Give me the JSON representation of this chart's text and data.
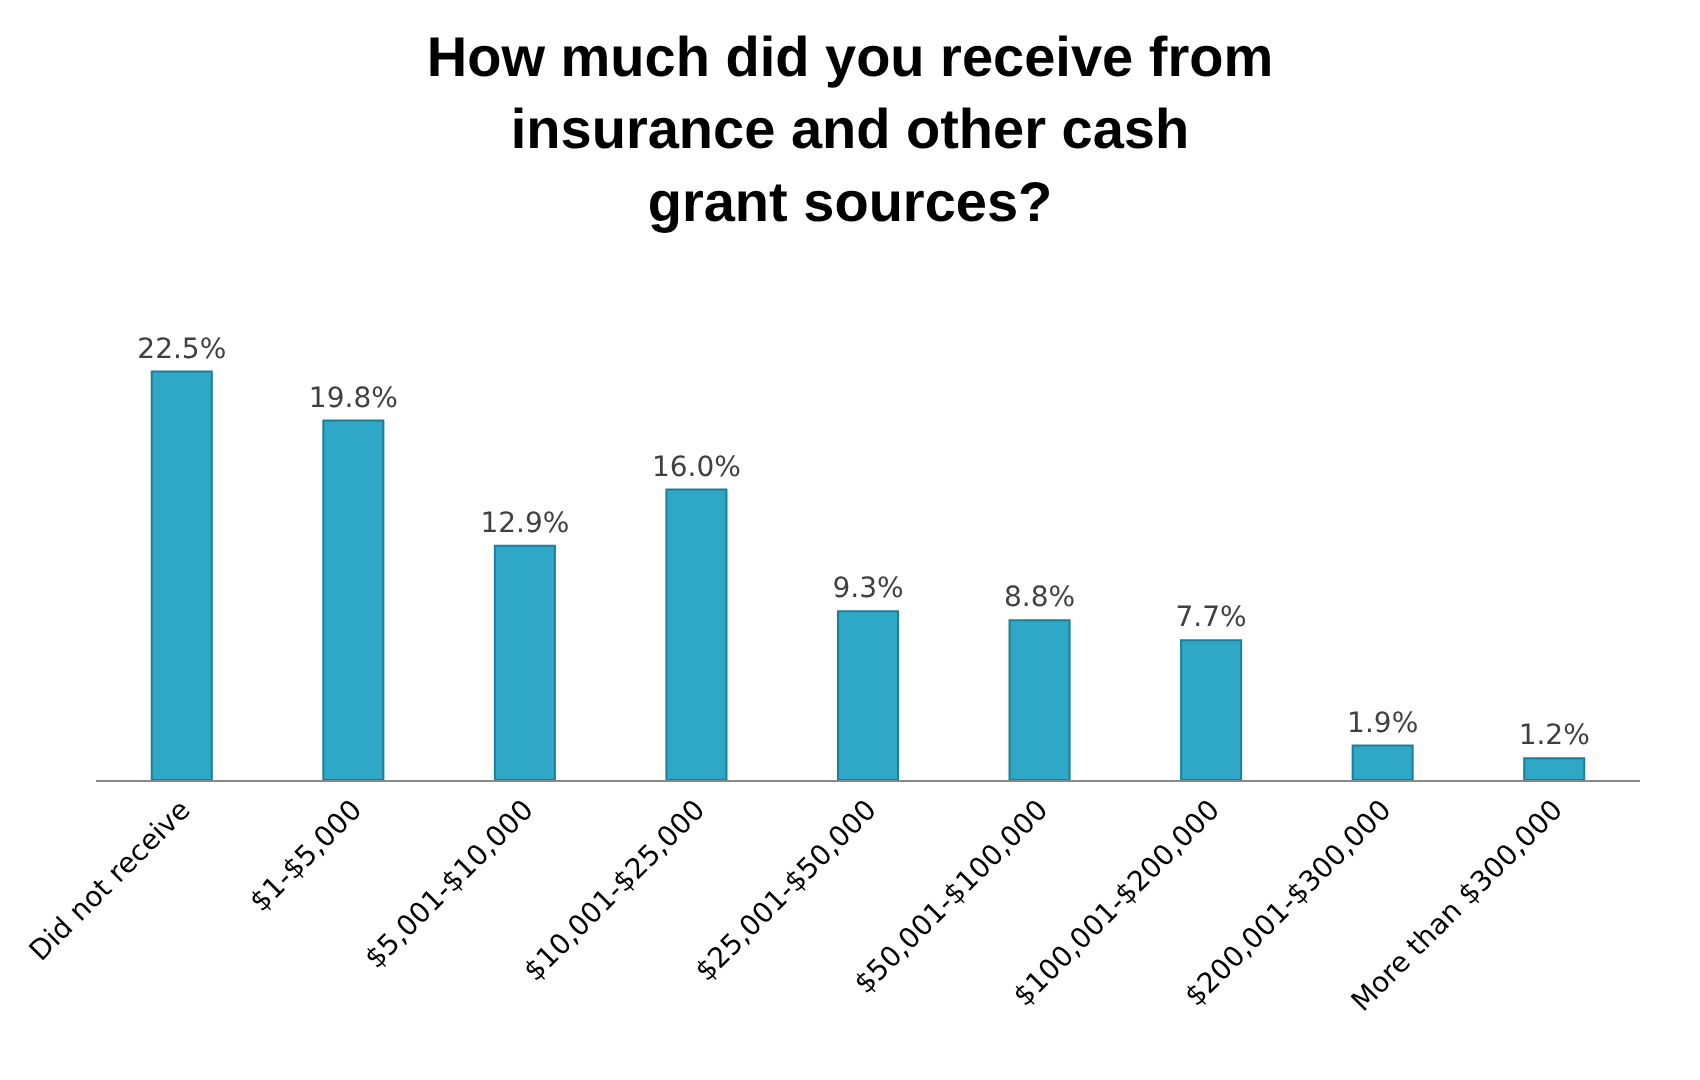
{
  "chart_data": {
    "type": "bar",
    "title": "How much did you receive from insurance and other cash grant sources?",
    "categories": [
      "Did not receive",
      "$1-$5,000",
      "$5,001-$10,000",
      "$10,001-$25,000",
      "$25,001-$50,000",
      "$50,001-$100,000",
      "$100,001-$200,000",
      "$200,001-$300,000",
      "More than $300,000"
    ],
    "values": [
      22.5,
      19.8,
      12.9,
      16.0,
      9.3,
      8.8,
      7.7,
      1.9,
      1.2
    ],
    "value_labels": [
      "22.5%",
      "19.8%",
      "12.9%",
      "16.0%",
      "9.3%",
      "8.8%",
      "7.7%",
      "1.9%",
      "1.2%"
    ],
    "color": "#2fa7c7"
  }
}
